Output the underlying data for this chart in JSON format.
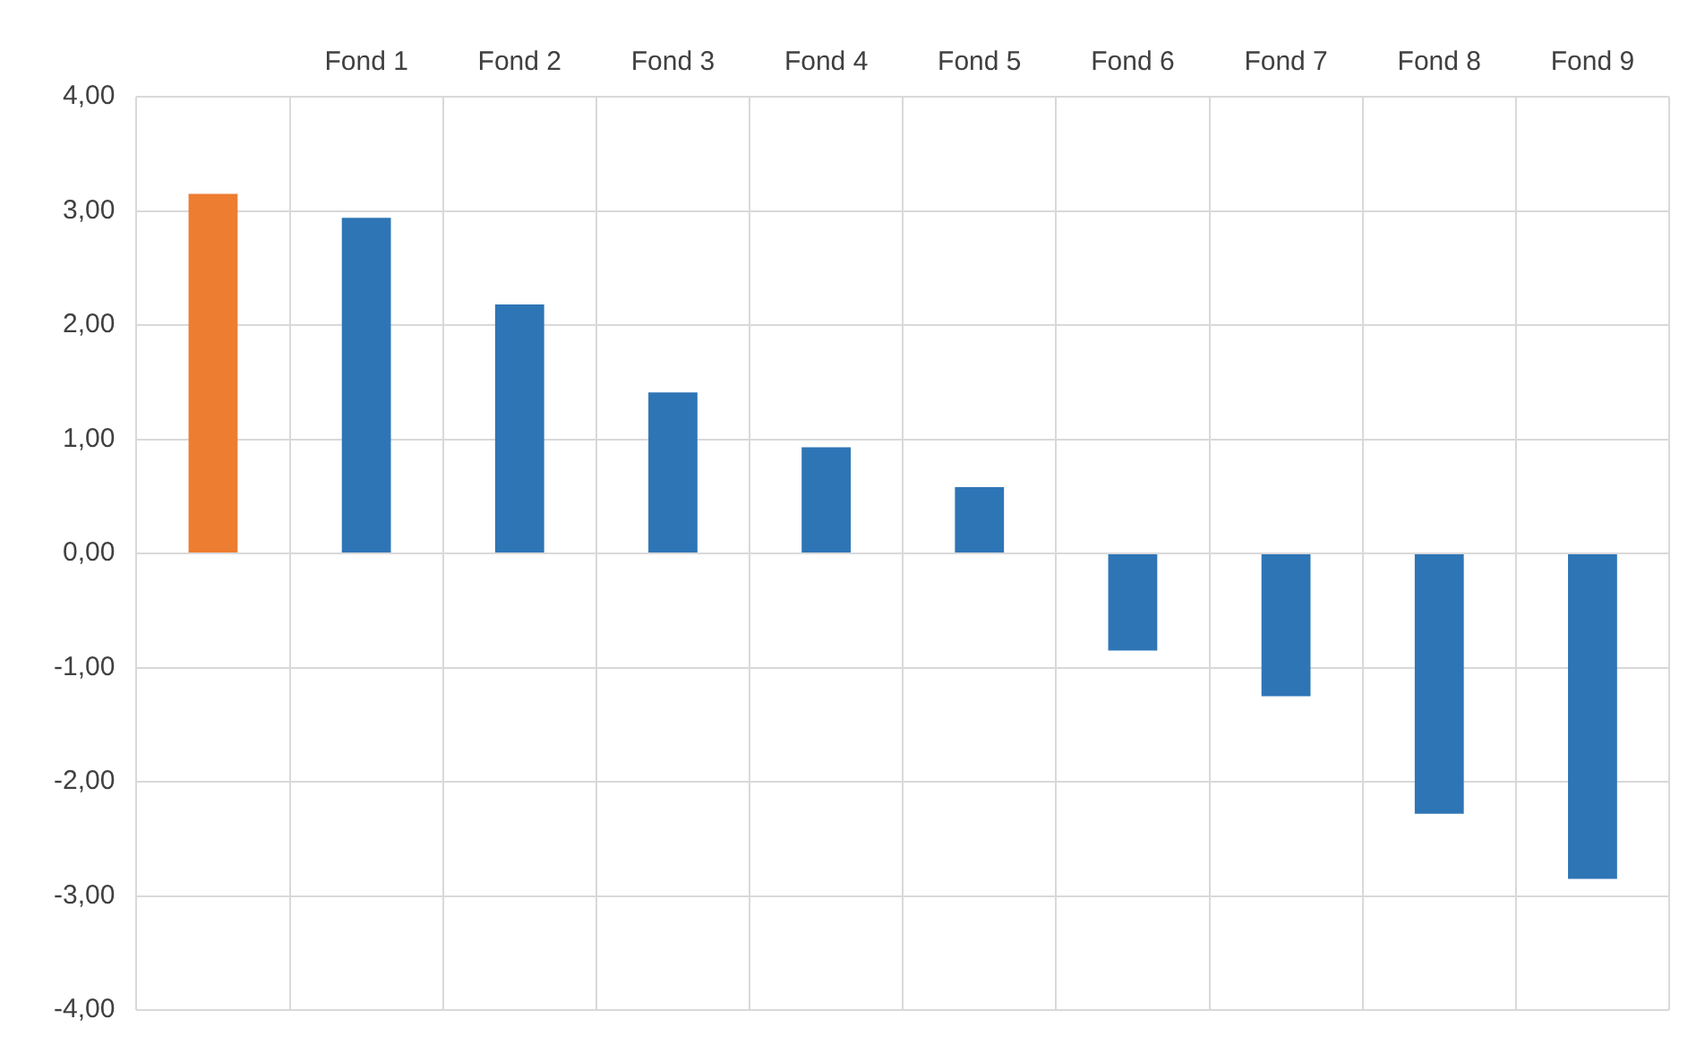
{
  "chart_data": {
    "type": "bar",
    "categories": [
      null,
      "Fond 1",
      "Fond 2",
      "Fond 3",
      "Fond 4",
      "Fond 5",
      "Fond 6",
      "Fond 7",
      "Fond 8",
      "Fond 9"
    ],
    "values": [
      3.15,
      2.94,
      2.18,
      1.41,
      0.93,
      0.58,
      -0.85,
      -1.25,
      -2.28,
      -2.85
    ],
    "colors": [
      "#ed7d31",
      "#2e75b6",
      "#2e75b6",
      "#2e75b6",
      "#2e75b6",
      "#2e75b6",
      "#2e75b6",
      "#2e75b6",
      "#2e75b6",
      "#2e75b6"
    ],
    "ylim": [
      -4,
      4
    ],
    "yticks": [
      {
        "value": -4,
        "label": "-4,00"
      },
      {
        "value": -3,
        "label": "-3,00"
      },
      {
        "value": -2,
        "label": "-2,00"
      },
      {
        "value": -1,
        "label": "-1,00"
      },
      {
        "value": 0,
        "label": "0,00"
      },
      {
        "value": 1,
        "label": "1,00"
      },
      {
        "value": 2,
        "label": "2,00"
      },
      {
        "value": 3,
        "label": "3,00"
      },
      {
        "value": 4,
        "label": "4,00"
      }
    ],
    "grid": true
  }
}
